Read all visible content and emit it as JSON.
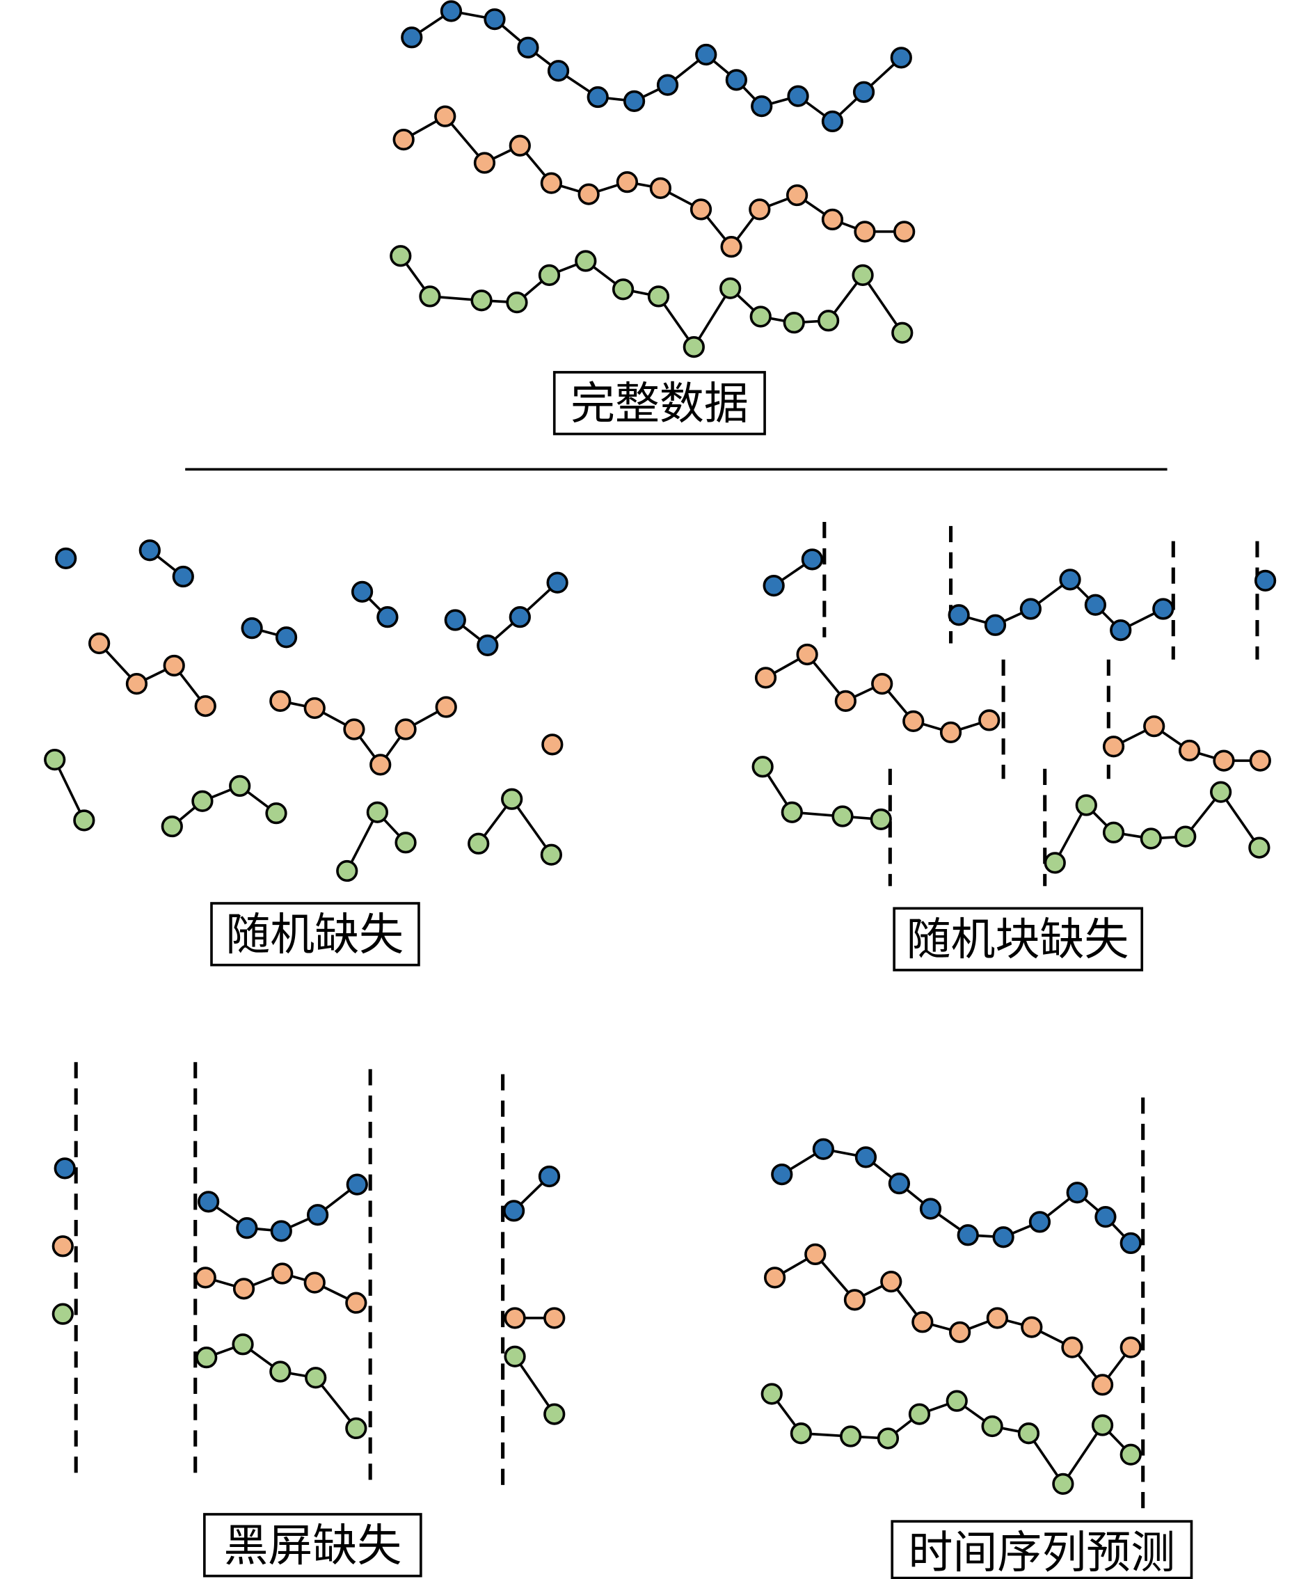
{
  "colors": {
    "series_1": "#2e75b6",
    "series_2": "#f4b183",
    "series_3": "#a9d18e",
    "stroke": "#000000"
  },
  "panels": {
    "complete": {
      "label": "完整数据"
    },
    "random_missing": {
      "label": "随机缺失"
    },
    "random_block_missing": {
      "label": "随机块缺失"
    },
    "blackout_missing": {
      "label": "黑屏缺失"
    },
    "forecasting": {
      "label": "时间序列预测"
    }
  }
}
